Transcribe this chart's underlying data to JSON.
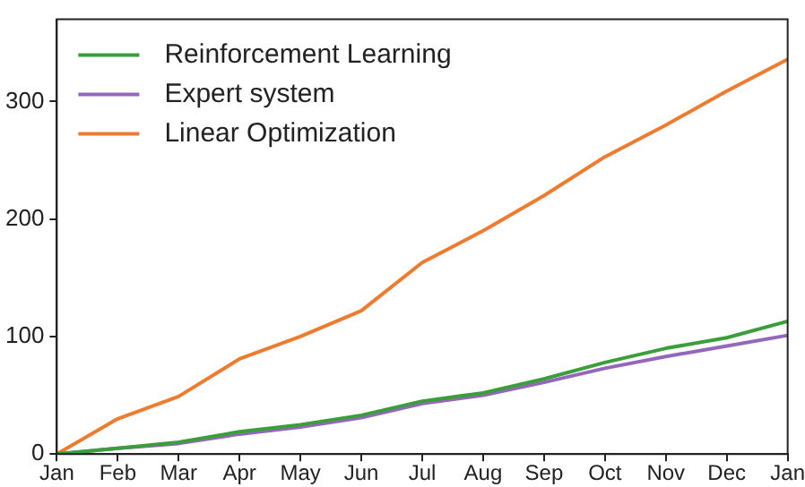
{
  "chart_data": {
    "type": "line",
    "categories": [
      "Jan",
      "Feb",
      "Mar",
      "Apr",
      "May",
      "Jun",
      "Jul",
      "Aug",
      "Sep",
      "Oct",
      "Nov",
      "Dec",
      "Jan"
    ],
    "ylim": [
      0,
      370
    ],
    "yticks": [
      0,
      100,
      200,
      300
    ],
    "series": [
      {
        "name": "Reinforcement Learning",
        "color": "#3a9e3a",
        "values": [
          0,
          5,
          10,
          19,
          25,
          33,
          45,
          52,
          64,
          78,
          90,
          99,
          113
        ]
      },
      {
        "name": "Expert system",
        "color": "#9467bd",
        "values": [
          0,
          5,
          9,
          17,
          23,
          31,
          43,
          50,
          61,
          73,
          83,
          92,
          101
        ]
      },
      {
        "name": "Linear Optimization",
        "color": "#ef7b2e",
        "values": [
          0,
          30,
          49,
          81,
          100,
          122,
          163,
          190,
          220,
          253,
          280,
          309,
          336
        ]
      }
    ],
    "legend": "top left",
    "grid": false,
    "marker": "none",
    "line_style": "solid"
  }
}
